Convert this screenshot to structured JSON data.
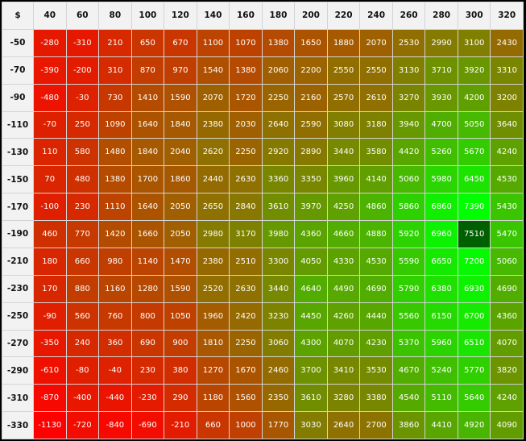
{
  "chart_data": {
    "type": "heatmap",
    "corner_label": "$",
    "columns": [
      "40",
      "60",
      "80",
      "100",
      "120",
      "140",
      "160",
      "180",
      "200",
      "220",
      "240",
      "260",
      "280",
      "300",
      "320"
    ],
    "rows": [
      {
        "label": "-50",
        "values": [
          -280,
          -310,
          210,
          650,
          670,
          1100,
          1070,
          1380,
          1650,
          1880,
          2070,
          2530,
          2990,
          3100,
          2430
        ]
      },
      {
        "label": "-70",
        "values": [
          -390,
          -200,
          310,
          870,
          970,
          1540,
          1380,
          2060,
          2200,
          2550,
          2550,
          3130,
          3710,
          3920,
          3310
        ]
      },
      {
        "label": "-90",
        "values": [
          -480,
          -30,
          730,
          1410,
          1590,
          2070,
          1720,
          2250,
          2160,
          2570,
          2610,
          3270,
          3930,
          4200,
          3200
        ]
      },
      {
        "label": "-110",
        "values": [
          -70,
          250,
          1090,
          1640,
          1840,
          2380,
          2030,
          2640,
          2590,
          3080,
          3180,
          3940,
          4700,
          5050,
          3640
        ]
      },
      {
        "label": "-130",
        "values": [
          110,
          580,
          1480,
          1840,
          2040,
          2620,
          2250,
          2920,
          2890,
          3440,
          3580,
          4420,
          5260,
          5670,
          4240
        ]
      },
      {
        "label": "-150",
        "values": [
          70,
          480,
          1380,
          1700,
          1860,
          2440,
          2630,
          3360,
          3350,
          3960,
          4140,
          5060,
          5980,
          6450,
          4530
        ]
      },
      {
        "label": "-170",
        "values": [
          -100,
          230,
          1110,
          1640,
          2050,
          2650,
          2840,
          3610,
          3970,
          4250,
          4860,
          5860,
          6860,
          7390,
          5430
        ]
      },
      {
        "label": "-190",
        "values": [
          460,
          770,
          1420,
          1660,
          2050,
          2980,
          3170,
          3980,
          4360,
          4660,
          4880,
          5920,
          6960,
          7510,
          5470
        ]
      },
      {
        "label": "-210",
        "values": [
          180,
          660,
          980,
          1140,
          1470,
          2380,
          2510,
          3300,
          4050,
          4330,
          4530,
          5590,
          6650,
          7200,
          5060
        ]
      },
      {
        "label": "-230",
        "values": [
          170,
          880,
          1160,
          1280,
          1590,
          2520,
          2630,
          3440,
          4640,
          4490,
          4690,
          5790,
          6380,
          6930,
          4690
        ]
      },
      {
        "label": "-250",
        "values": [
          -90,
          560,
          760,
          800,
          1050,
          1960,
          2420,
          3230,
          4450,
          4260,
          4440,
          5560,
          6150,
          6700,
          4360
        ]
      },
      {
        "label": "-270",
        "values": [
          -350,
          240,
          360,
          690,
          900,
          1810,
          2250,
          3060,
          4300,
          4070,
          4230,
          5370,
          5960,
          6510,
          4070
        ]
      },
      {
        "label": "-290",
        "values": [
          -610,
          -80,
          -40,
          230,
          380,
          1270,
          1670,
          2460,
          3700,
          3410,
          3530,
          4670,
          5240,
          5770,
          3820
        ]
      },
      {
        "label": "-310",
        "values": [
          -870,
          -400,
          -440,
          -230,
          290,
          1180,
          1560,
          2350,
          3610,
          3280,
          3380,
          4540,
          5110,
          5640,
          4240
        ]
      },
      {
        "label": "-330",
        "values": [
          -1130,
          -720,
          -840,
          -690,
          -210,
          660,
          1000,
          1770,
          3030,
          2640,
          2700,
          3860,
          4410,
          4920,
          4090
        ]
      }
    ],
    "color_scale": {
      "low": "#ff0000",
      "high": "#00ff00"
    },
    "max_cell_color": "#005f00"
  }
}
